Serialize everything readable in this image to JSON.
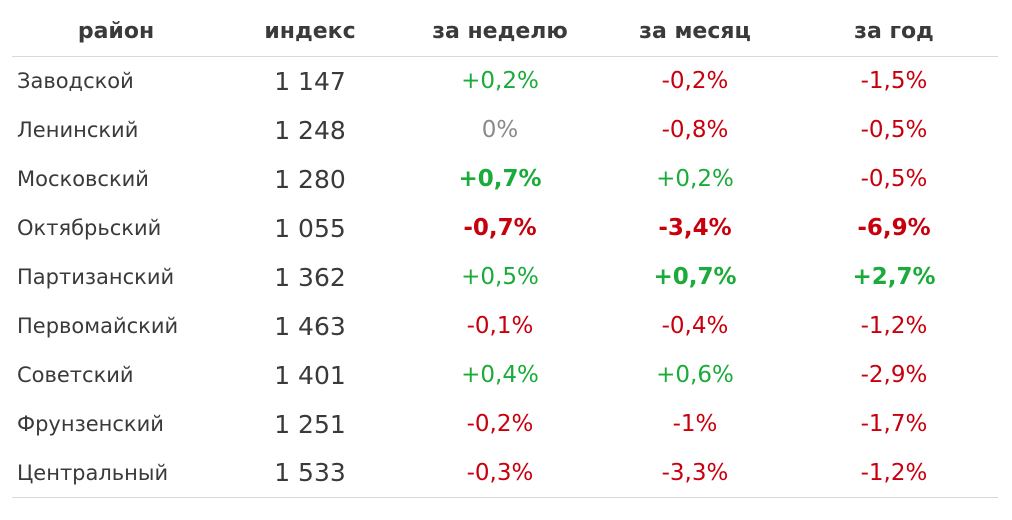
{
  "colors": {
    "positive": "#1aab3a",
    "negative": "#c8000d",
    "neutral": "#8a8a8a"
  },
  "table": {
    "headers": [
      "район",
      "индекс",
      "за неделю",
      "за месяц",
      "за год"
    ],
    "rows": [
      {
        "district": "Заводской",
        "index": "1 147",
        "week": {
          "text": "+0,2%",
          "tone": "pos",
          "bold": false
        },
        "month": {
          "text": "-0,2%",
          "tone": "neg",
          "bold": false
        },
        "year": {
          "text": "-1,5%",
          "tone": "neg",
          "bold": false
        }
      },
      {
        "district": "Ленинский",
        "index": "1 248",
        "week": {
          "text": "0%",
          "tone": "neu",
          "bold": false
        },
        "month": {
          "text": "-0,8%",
          "tone": "neg",
          "bold": false
        },
        "year": {
          "text": "-0,5%",
          "tone": "neg",
          "bold": false
        }
      },
      {
        "district": "Московский",
        "index": "1 280",
        "week": {
          "text": "+0,7%",
          "tone": "pos",
          "bold": true
        },
        "month": {
          "text": "+0,2%",
          "tone": "pos",
          "bold": false
        },
        "year": {
          "text": "-0,5%",
          "tone": "neg",
          "bold": false
        }
      },
      {
        "district": "Октябрьский",
        "index": "1 055",
        "week": {
          "text": "-0,7%",
          "tone": "neg",
          "bold": true
        },
        "month": {
          "text": "-3,4%",
          "tone": "neg",
          "bold": true
        },
        "year": {
          "text": "-6,9%",
          "tone": "neg",
          "bold": true
        }
      },
      {
        "district": "Партизанский",
        "index": "1 362",
        "week": {
          "text": "+0,5%",
          "tone": "pos",
          "bold": false
        },
        "month": {
          "text": "+0,7%",
          "tone": "pos",
          "bold": true
        },
        "year": {
          "text": "+2,7%",
          "tone": "pos",
          "bold": true
        }
      },
      {
        "district": "Первомайский",
        "index": "1 463",
        "week": {
          "text": "-0,1%",
          "tone": "neg",
          "bold": false
        },
        "month": {
          "text": "-0,4%",
          "tone": "neg",
          "bold": false
        },
        "year": {
          "text": "-1,2%",
          "tone": "neg",
          "bold": false
        }
      },
      {
        "district": "Советский",
        "index": "1 401",
        "week": {
          "text": "+0,4%",
          "tone": "pos",
          "bold": false
        },
        "month": {
          "text": "+0,6%",
          "tone": "pos",
          "bold": false
        },
        "year": {
          "text": "-2,9%",
          "tone": "neg",
          "bold": false
        }
      },
      {
        "district": "Фрунзенский",
        "index": "1 251",
        "week": {
          "text": "-0,2%",
          "tone": "neg",
          "bold": false
        },
        "month": {
          "text": "-1%",
          "tone": "neg",
          "bold": false
        },
        "year": {
          "text": "-1,7%",
          "tone": "neg",
          "bold": false
        }
      },
      {
        "district": "Центральный",
        "index": "1 533",
        "week": {
          "text": "-0,3%",
          "tone": "neg",
          "bold": false
        },
        "month": {
          "text": "-3,3%",
          "tone": "neg",
          "bold": false
        },
        "year": {
          "text": "-1,2%",
          "tone": "neg",
          "bold": false
        }
      }
    ]
  }
}
